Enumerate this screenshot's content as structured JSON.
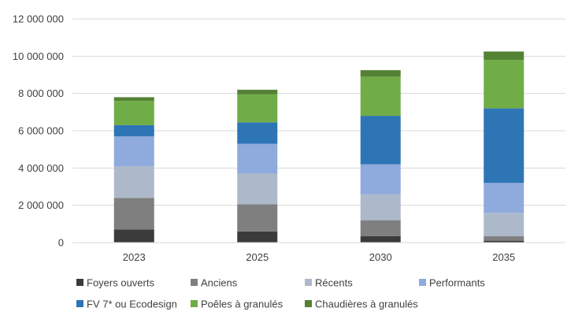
{
  "chart_data": {
    "type": "bar",
    "stacked": true,
    "categories": [
      "2023",
      "2025",
      "2030",
      "2035"
    ],
    "y_ticks": [
      "0",
      "2 000 000",
      "4 000 000",
      "6 000 000",
      "8 000 000",
      "10 000 000",
      "12 000 000"
    ],
    "ylim": [
      0,
      12000000
    ],
    "grid": true,
    "legend_position": "bottom",
    "series": [
      {
        "name": "Foyers ouverts",
        "color": "#3b3b3b",
        "values": [
          700000,
          600000,
          350000,
          100000
        ]
      },
      {
        "name": "Anciens",
        "color": "#7f7f7f",
        "values": [
          1700000,
          1450000,
          850000,
          250000
        ]
      },
      {
        "name": "Récents",
        "color": "#adb9ca",
        "values": [
          1700000,
          1650000,
          1400000,
          1250000
        ]
      },
      {
        "name": "Performants",
        "color": "#8faadc",
        "values": [
          1600000,
          1600000,
          1600000,
          1600000
        ]
      },
      {
        "name": "FV 7* ou Ecodesign",
        "color": "#2e75b6",
        "values": [
          600000,
          1150000,
          2600000,
          4000000
        ]
      },
      {
        "name": "Poêles à granulés",
        "color": "#70ad47",
        "values": [
          1300000,
          1500000,
          2100000,
          2600000
        ]
      },
      {
        "name": "Chaudières à granulés",
        "color": "#548235",
        "values": [
          200000,
          250000,
          350000,
          450000
        ]
      }
    ]
  }
}
